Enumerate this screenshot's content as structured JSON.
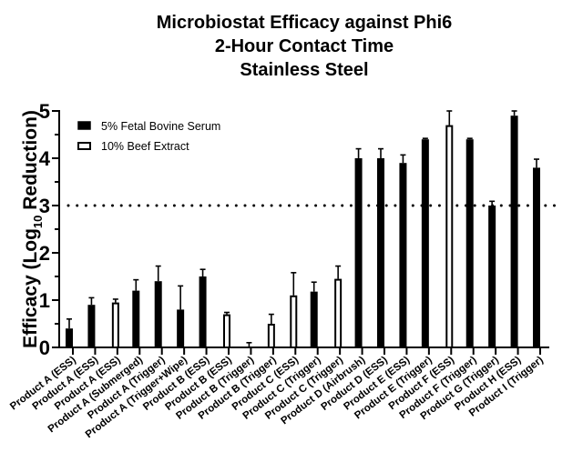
{
  "chart_data": {
    "type": "bar",
    "title": [
      "Microbiostat Efficacy against Phi6",
      "2-Hour Contact Time",
      "Stainless Steel"
    ],
    "xlabel": "",
    "ylabel": {
      "prefix": "Efficacy (Log",
      "subscript": "10",
      "suffix": " Reduction)"
    },
    "ylim": [
      0,
      5
    ],
    "yticks": [
      0,
      1,
      2,
      3,
      4,
      5
    ],
    "yminor_step": 0.5,
    "grid": false,
    "reference_line": {
      "y": 3,
      "style": "dotted"
    },
    "legend": {
      "placement": "top-left",
      "entries": [
        {
          "name": "5% Fetal Bovine Serum",
          "fill": "#000000"
        },
        {
          "name": "10% Beef Extract",
          "fill": "#ffffff"
        }
      ]
    },
    "series_colors": {
      "5% Fetal Bovine Serum": "#000000",
      "10% Beef Extract": "#ffffff"
    },
    "categories": [
      "Product A (ESS)",
      "Product A (ESS)",
      "Product A (ESS)",
      "Product A (Submerged)",
      "Product A (Trigger)",
      "Product A (Trigger+Wipe)",
      "Product B (ESS)",
      "Product B (ESS)",
      "Product B (Trigger)",
      "Product B (Trigger)",
      "Product C (ESS)",
      "Product C (Trigger)",
      "Product C (Trigger)",
      "Product D (Airbrush)",
      "Product D (ESS)",
      "Product E (ESS)",
      "Product E (Trigger)",
      "Product F (ESS)",
      "Product F (Trigger)",
      "Product G (Trigger)",
      "Product H (ESS)",
      "Product I (Trigger)"
    ],
    "bars": [
      {
        "series": "5% Fetal Bovine Serum",
        "value": 0.4,
        "error": 0.2
      },
      {
        "series": "5% Fetal Bovine Serum",
        "value": 0.9,
        "error": 0.15
      },
      {
        "series": "10% Beef Extract",
        "value": 0.95,
        "error": 0.07
      },
      {
        "series": "5% Fetal Bovine Serum",
        "value": 1.2,
        "error": 0.23
      },
      {
        "series": "5% Fetal Bovine Serum",
        "value": 1.4,
        "error": 0.32
      },
      {
        "series": "5% Fetal Bovine Serum",
        "value": 0.8,
        "error": 0.5
      },
      {
        "series": "5% Fetal Bovine Serum",
        "value": 1.5,
        "error": 0.15
      },
      {
        "series": "10% Beef Extract",
        "value": 0.7,
        "error": 0.04
      },
      {
        "series": "10% Beef Extract",
        "value": 0.0,
        "error": 0.1
      },
      {
        "series": "10% Beef Extract",
        "value": 0.5,
        "error": 0.2
      },
      {
        "series": "10% Beef Extract",
        "value": 1.1,
        "error": 0.48
      },
      {
        "series": "5% Fetal Bovine Serum",
        "value": 1.18,
        "error": 0.2
      },
      {
        "series": "10% Beef Extract",
        "value": 1.45,
        "error": 0.27
      },
      {
        "series": "5% Fetal Bovine Serum",
        "value": 4.0,
        "error": 0.2
      },
      {
        "series": "5% Fetal Bovine Serum",
        "value": 4.0,
        "error": 0.2
      },
      {
        "series": "5% Fetal Bovine Serum",
        "value": 3.9,
        "error": 0.17
      },
      {
        "series": "5% Fetal Bovine Serum",
        "value": 4.4,
        "error": 0.02
      },
      {
        "series": "10% Beef Extract",
        "value": 4.7,
        "error": 0.3
      },
      {
        "series": "5% Fetal Bovine Serum",
        "value": 4.4,
        "error": 0.02
      },
      {
        "series": "5% Fetal Bovine Serum",
        "value": 3.0,
        "error": 0.09
      },
      {
        "series": "5% Fetal Bovine Serum",
        "value": 4.9,
        "error": 0.1
      },
      {
        "series": "5% Fetal Bovine Serum",
        "value": 3.8,
        "error": 0.18
      }
    ]
  }
}
